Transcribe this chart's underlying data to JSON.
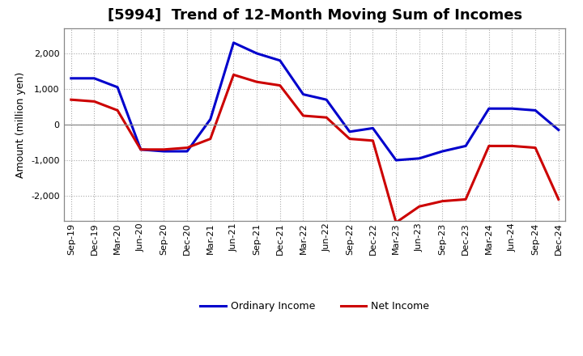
{
  "title": "[5994]  Trend of 12-Month Moving Sum of Incomes",
  "ylabel": "Amount (million yen)",
  "ylim": [
    -2700,
    2700
  ],
  "yticks": [
    -2000,
    -1000,
    0,
    1000,
    2000
  ],
  "x_labels": [
    "Sep-19",
    "Dec-19",
    "Mar-20",
    "Jun-20",
    "Sep-20",
    "Dec-20",
    "Mar-21",
    "Jun-21",
    "Sep-21",
    "Dec-21",
    "Mar-22",
    "Jun-22",
    "Sep-22",
    "Dec-22",
    "Mar-23",
    "Jun-23",
    "Sep-23",
    "Dec-23",
    "Mar-24",
    "Jun-24",
    "Sep-24",
    "Dec-24"
  ],
  "ordinary_income": [
    1300,
    1300,
    1050,
    -700,
    -750,
    -750,
    150,
    2300,
    2000,
    1800,
    850,
    700,
    -200,
    -100,
    -1000,
    -950,
    -750,
    -600,
    450,
    450,
    400,
    -150
  ],
  "net_income": [
    700,
    650,
    400,
    -700,
    -700,
    -650,
    -400,
    1400,
    1200,
    1100,
    250,
    200,
    -400,
    -450,
    -2750,
    -2300,
    -2150,
    -2100,
    -600,
    -600,
    -650,
    -2100
  ],
  "ordinary_color": "#0000CC",
  "net_color": "#CC0000",
  "line_width": 2.2,
  "background_color": "#FFFFFF",
  "plot_bg_color": "#FFFFFF",
  "grid_color": "#AAAAAA",
  "legend_ordinary": "Ordinary Income",
  "legend_net": "Net Income",
  "title_fontsize": 13,
  "tick_fontsize": 8,
  "ylabel_fontsize": 9
}
